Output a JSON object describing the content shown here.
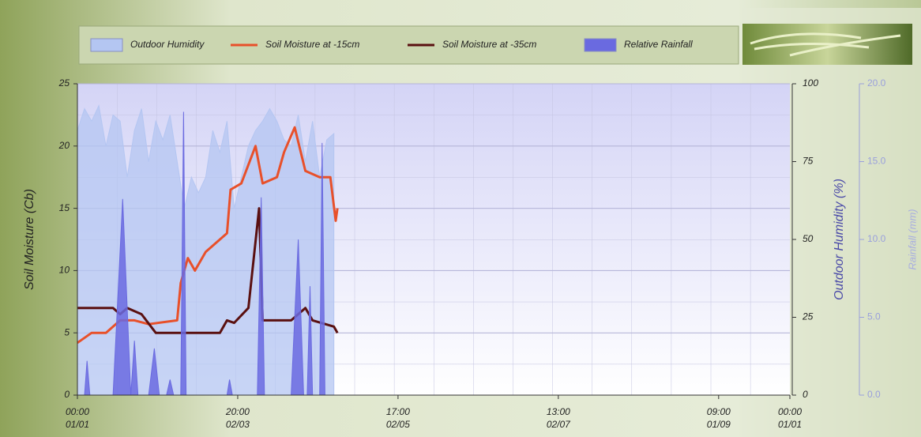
{
  "chart_data": {
    "type": "line",
    "legend": "top",
    "grid": true,
    "xlim": [
      0,
      200
    ],
    "xticks": [
      {
        "value": 0,
        "label": [
          "00:00",
          "01/01"
        ]
      },
      {
        "value": 45,
        "label": [
          "20:00",
          "02/03"
        ]
      },
      {
        "value": 90,
        "label": [
          "17:00",
          "02/05"
        ]
      },
      {
        "value": 135,
        "label": [
          "13:00",
          "02/07"
        ]
      },
      {
        "value": 180,
        "label": [
          "09:00",
          "01/09"
        ]
      },
      {
        "value": 200,
        "label": [
          "00:00",
          "01/01"
        ]
      }
    ],
    "ylabel": "Soil Moisture (Cb)",
    "ylim": [
      0,
      25
    ],
    "yticks": [
      0,
      5,
      10,
      15,
      20,
      25
    ],
    "y2label": "Outdoor Humidity (%)",
    "y2lim": [
      0,
      100
    ],
    "y2ticks": [
      0,
      25,
      50,
      75,
      100
    ],
    "y3label": "Rainfall (mm)",
    "y3lim": [
      0,
      20
    ],
    "y3ticks": [
      {
        "value": 0,
        "label": "0.0"
      },
      {
        "value": 5,
        "label": "5.0"
      },
      {
        "value": 10,
        "label": "10.0"
      },
      {
        "value": 15,
        "label": "15.0"
      },
      {
        "value": 20,
        "label": "20.0"
      }
    ],
    "series": [
      {
        "name": "Outdoor Humidity",
        "color": "#b4c6f2",
        "style": "area",
        "axis": "y2",
        "x": [
          0,
          2,
          4,
          6,
          8,
          10,
          12,
          14,
          16,
          18,
          20,
          22,
          24,
          26,
          28,
          30,
          32,
          34,
          36,
          38,
          40,
          42,
          44,
          46,
          48,
          50,
          52,
          54,
          56,
          58,
          60,
          62,
          64,
          66,
          68,
          70,
          72
        ],
        "values": [
          85,
          92,
          88,
          93,
          80,
          90,
          88,
          70,
          85,
          92,
          75,
          88,
          82,
          90,
          75,
          60,
          70,
          65,
          70,
          85,
          78,
          88,
          60,
          70,
          80,
          85,
          88,
          92,
          88,
          82,
          80,
          90,
          75,
          88,
          70,
          82,
          84
        ]
      },
      {
        "name": "Soil Moisture at -15cm",
        "color": "#e8502a",
        "style": "line",
        "axis": "y",
        "x": [
          0,
          4,
          8,
          12,
          16,
          20,
          28,
          29,
          31,
          33,
          36,
          40,
          42,
          43,
          46,
          50,
          52,
          56,
          58,
          61,
          64,
          68,
          71,
          72.5,
          73
        ],
        "values": [
          4.2,
          5,
          5,
          6,
          6,
          5.7,
          6,
          9,
          11,
          10,
          11.5,
          12.5,
          13,
          16.5,
          17,
          20,
          17,
          17.5,
          19.5,
          21.5,
          18,
          17.5,
          17.5,
          14,
          15
        ]
      },
      {
        "name": "Soil Moisture at -35cm",
        "color": "#5a1010",
        "style": "line",
        "axis": "y",
        "x": [
          0,
          10,
          12,
          14,
          18,
          22,
          30,
          40,
          42,
          44,
          48,
          51,
          52,
          60,
          64,
          66,
          72,
          73
        ],
        "values": [
          7,
          7,
          6.5,
          7,
          6.5,
          5,
          5,
          5,
          6,
          5.8,
          7,
          15,
          6,
          6,
          7,
          6,
          5.5,
          5
        ]
      },
      {
        "name": "Relative Rainfall",
        "color": "#6a6ae0",
        "style": "area",
        "axis": "y3",
        "x": [
          0,
          2,
          2.7,
          3.5,
          10,
          12.7,
          15,
          16,
          17,
          20,
          21.6,
          23,
          25,
          26,
          27,
          29,
          29.8,
          30.5,
          42,
          42.7,
          43.5,
          50.5,
          51.6,
          52.5,
          60,
          62,
          63.5,
          64.5,
          65.3,
          66,
          68,
          68.7,
          69.5,
          73
        ],
        "values": [
          0,
          0,
          2.2,
          0,
          0,
          12.6,
          0,
          3.5,
          0,
          0,
          3,
          0,
          0,
          1,
          0,
          0,
          18.2,
          0,
          0,
          1,
          0,
          0,
          12.7,
          0,
          0,
          10,
          0,
          0,
          7,
          0,
          0,
          16.2,
          0,
          0
        ]
      }
    ]
  }
}
